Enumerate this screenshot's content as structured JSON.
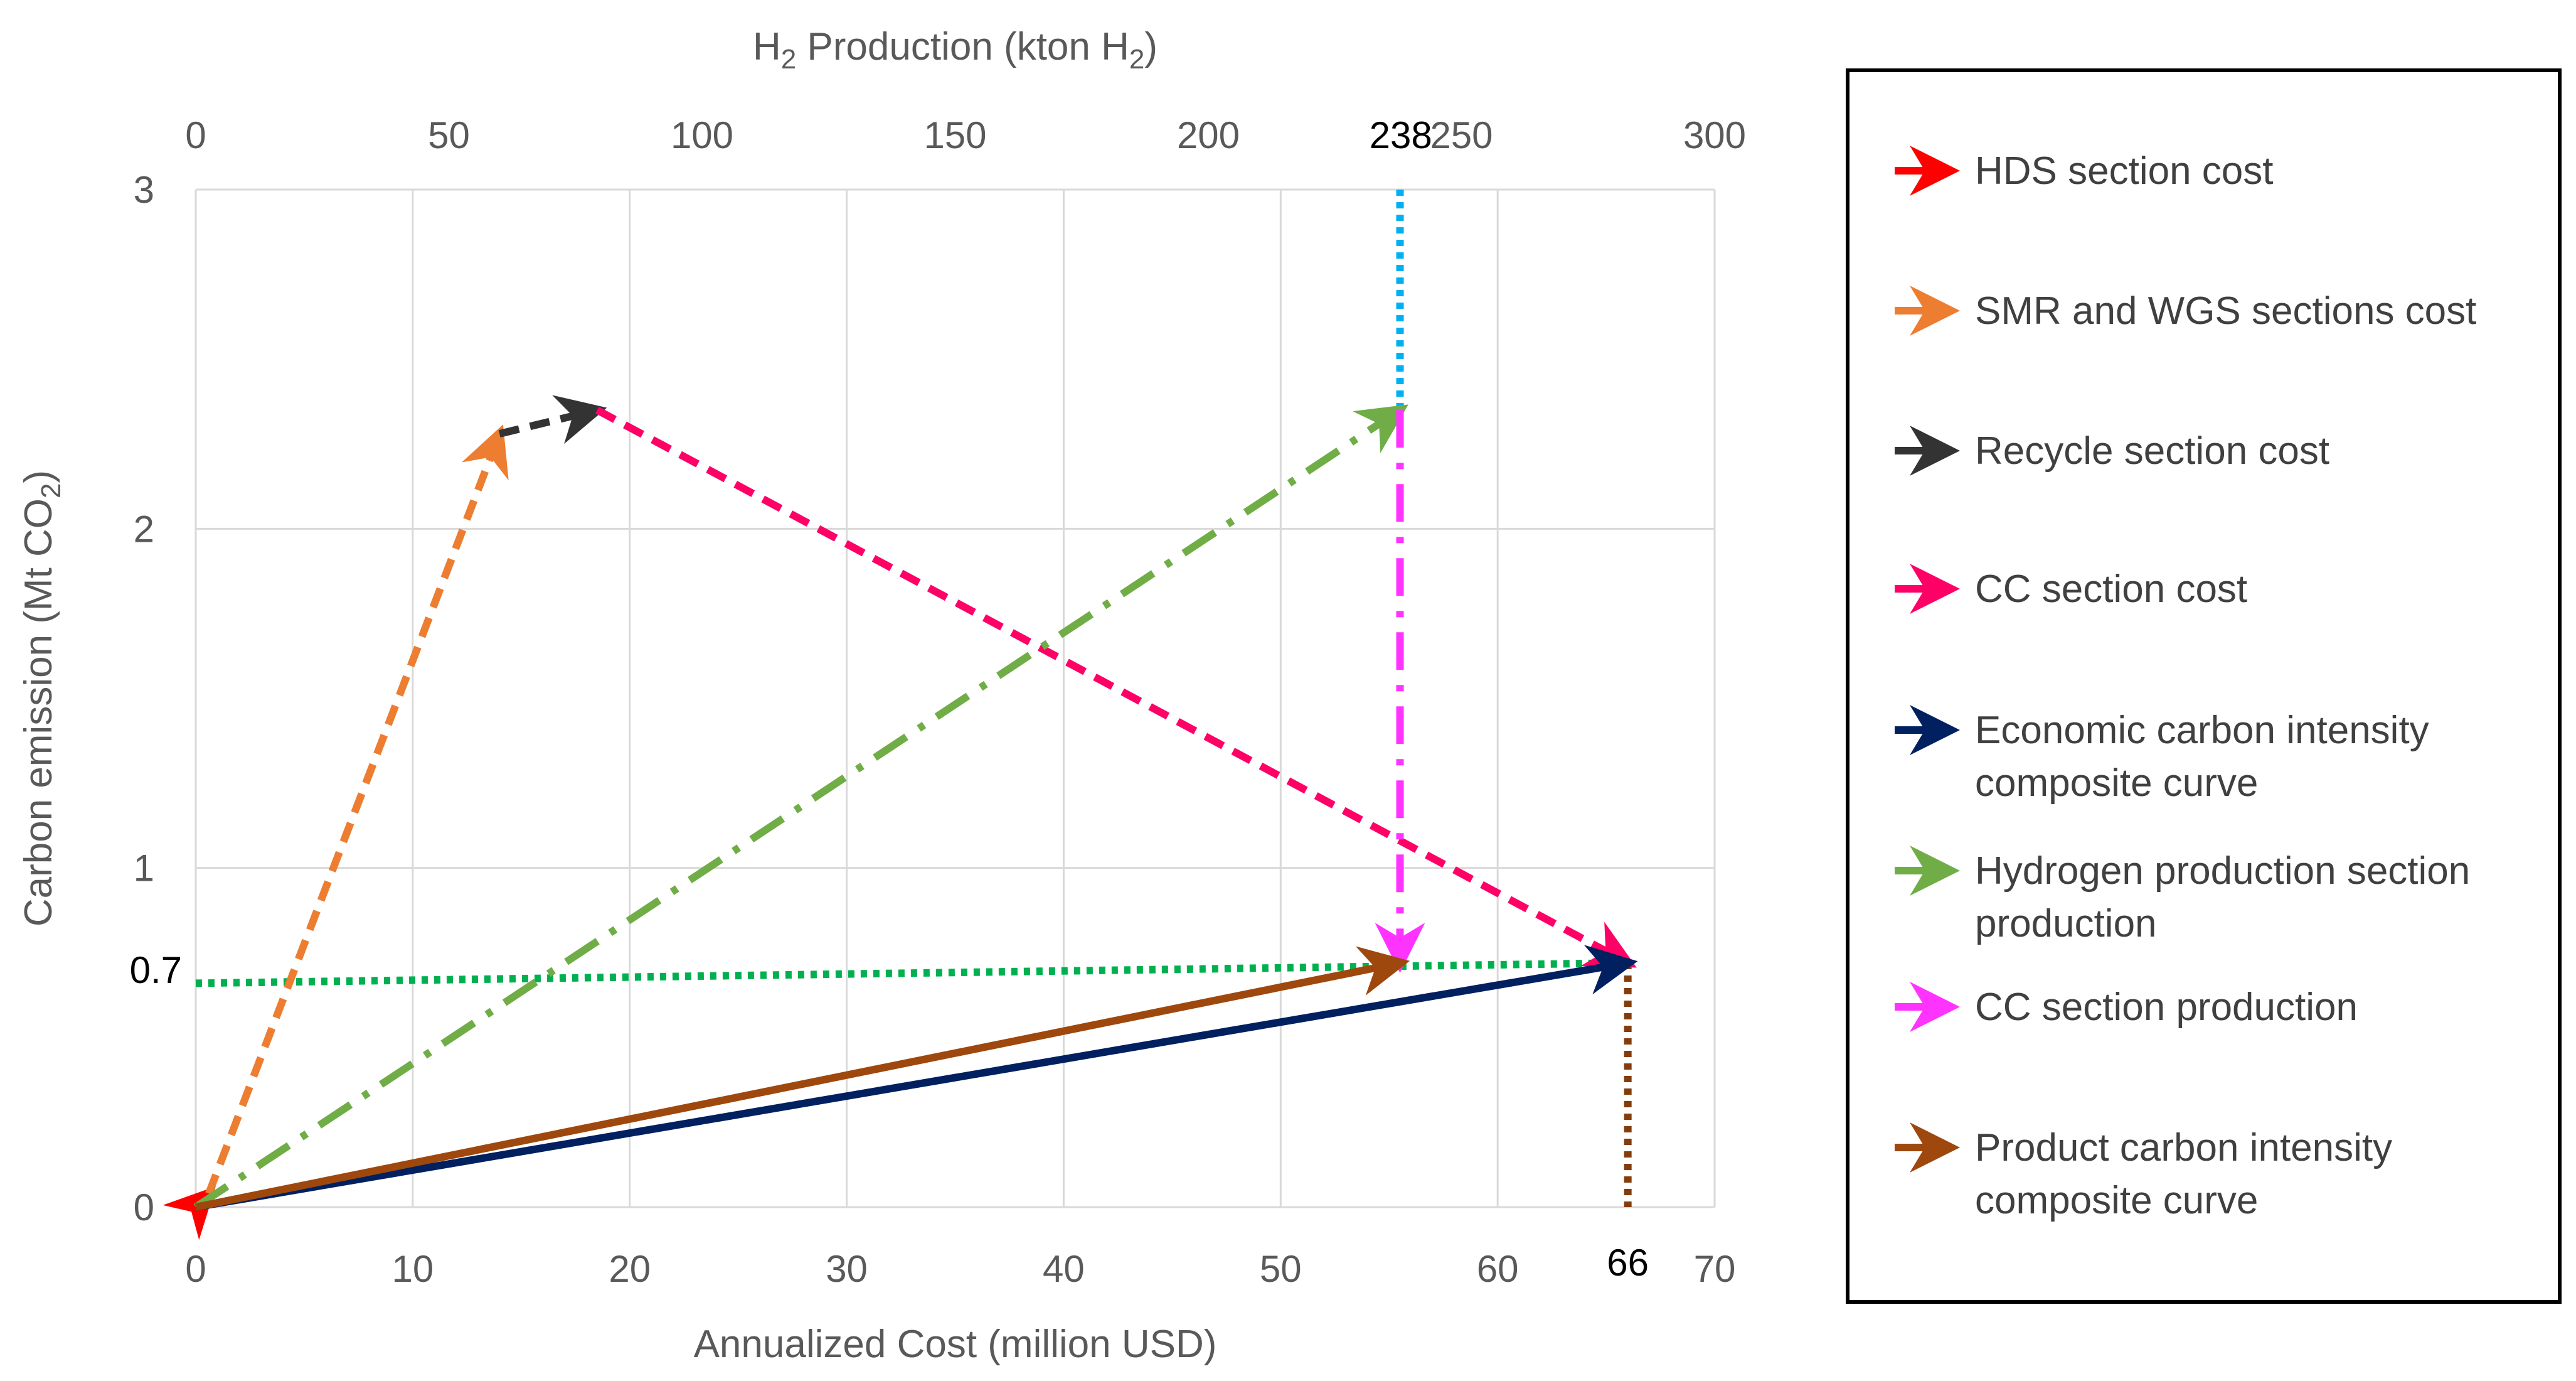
{
  "chart_data": {
    "type": "line",
    "title": "",
    "xlabel": "Annualized Cost (million USD)",
    "ylabel": "Carbon emission (Mt CO",
    "ylabel_sub": "2",
    "ylabel_end": ")",
    "x2label_pre": "H",
    "x2label_sub": "2",
    "x2label_mid": " Production (kton H",
    "x2label_sub2": "2",
    "x2label_end": ")",
    "xlim": [
      0,
      70
    ],
    "ylim": [
      0,
      3
    ],
    "x2lim": [
      0,
      300
    ],
    "xticks": [
      0,
      10,
      20,
      30,
      40,
      50,
      60,
      70
    ],
    "yticks": [
      0,
      1,
      2,
      3
    ],
    "x2ticks": [
      0,
      50,
      100,
      150,
      200,
      250,
      300
    ],
    "grid": true,
    "legend_position": "right",
    "annotations": [
      {
        "text": "238",
        "axis": "x2",
        "value": 238
      },
      {
        "text": "66",
        "axis": "x",
        "value": 66
      },
      {
        "text": "0.7",
        "axis": "y",
        "value": 0.7
      }
    ],
    "series": [
      {
        "name": "HDS section cost",
        "color": "#ff0000",
        "dash": "solid",
        "points": [
          [
            0,
            0
          ],
          [
            0.6,
            0.04
          ]
        ]
      },
      {
        "name": "SMR and WGS sections cost",
        "color": "#ed7d31",
        "dash": "dashed",
        "points": [
          [
            0.6,
            0.04
          ],
          [
            14,
            2.28
          ]
        ]
      },
      {
        "name": "Recycle section cost",
        "color": "#333333",
        "dash": "dashed",
        "points": [
          [
            14,
            2.28
          ],
          [
            18.5,
            2.35
          ]
        ]
      },
      {
        "name": "CC section cost",
        "color": "#ff0066",
        "dash": "dashed",
        "points": [
          [
            18.5,
            2.35
          ],
          [
            66,
            0.72
          ]
        ]
      },
      {
        "name": "Economic carbon intensity composite curve",
        "color": "#002060",
        "dash": "solid",
        "points": [
          [
            0,
            0
          ],
          [
            66,
            0.72
          ]
        ]
      },
      {
        "name": "Hydrogen production section production",
        "color": "#70ad47",
        "dash": "dashdot",
        "points": [
          [
            0,
            0
          ],
          [
            55.5,
            2.35
          ]
        ]
      },
      {
        "name": "CC section production",
        "color": "#ff33ff",
        "dash": "dashdot",
        "points": [
          [
            55.5,
            2.35
          ],
          [
            55.5,
            0.72
          ]
        ]
      },
      {
        "name": "Product carbon intensity composite curve",
        "color": "#9e480e",
        "dash": "solid",
        "points": [
          [
            0,
            0
          ],
          [
            55.5,
            0.72
          ]
        ]
      }
    ],
    "reference_lines": [
      {
        "name": "H2 production marker",
        "color": "#00b0f0",
        "dash": "dotted",
        "points": [
          [
            55.5,
            3
          ],
          [
            55.5,
            2.35
          ]
        ]
      },
      {
        "name": "Carbon emission marker",
        "color": "#00b050",
        "dash": "dotted",
        "points": [
          [
            0,
            0.66
          ],
          [
            66,
            0.72
          ]
        ]
      },
      {
        "name": "Cost marker",
        "color": "#833c0b",
        "dash": "dotted",
        "points": [
          [
            66,
            0.72
          ],
          [
            66,
            0
          ]
        ]
      }
    ]
  }
}
